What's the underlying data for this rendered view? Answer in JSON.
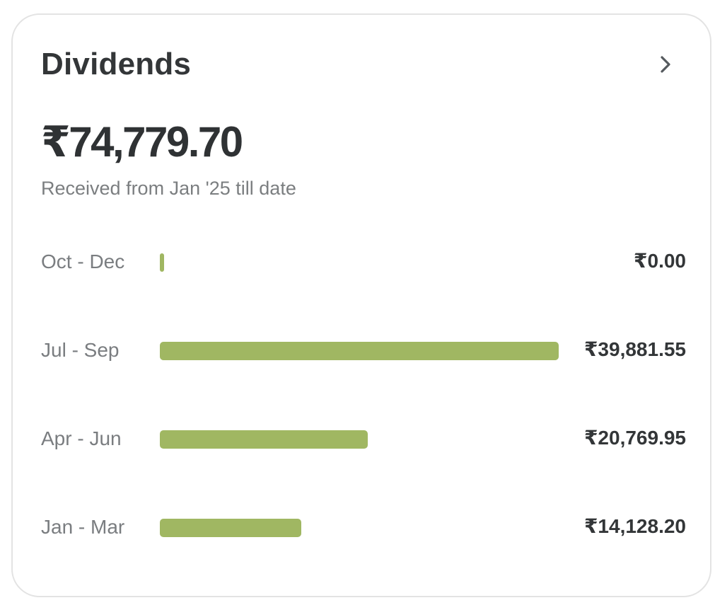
{
  "card": {
    "title": "Dividends",
    "total_amount": "₹74,779.70",
    "subtitle": "Received from Jan '25 till date",
    "open_icon": "chevron-right-icon"
  },
  "accent_color": "#a0b762",
  "chart_data": {
    "type": "bar",
    "orientation": "horizontal",
    "categories": [
      "Oct - Dec",
      "Jul - Sep",
      "Apr - Jun",
      "Jan - Mar"
    ],
    "values": [
      0.0,
      39881.55,
      20769.95,
      14128.2
    ],
    "value_labels": [
      "₹0.00",
      "₹39,881.55",
      "₹20,769.95",
      "₹14,128.20"
    ],
    "title": "",
    "xlabel": "",
    "ylabel": "",
    "grid": false,
    "legend": "none"
  }
}
